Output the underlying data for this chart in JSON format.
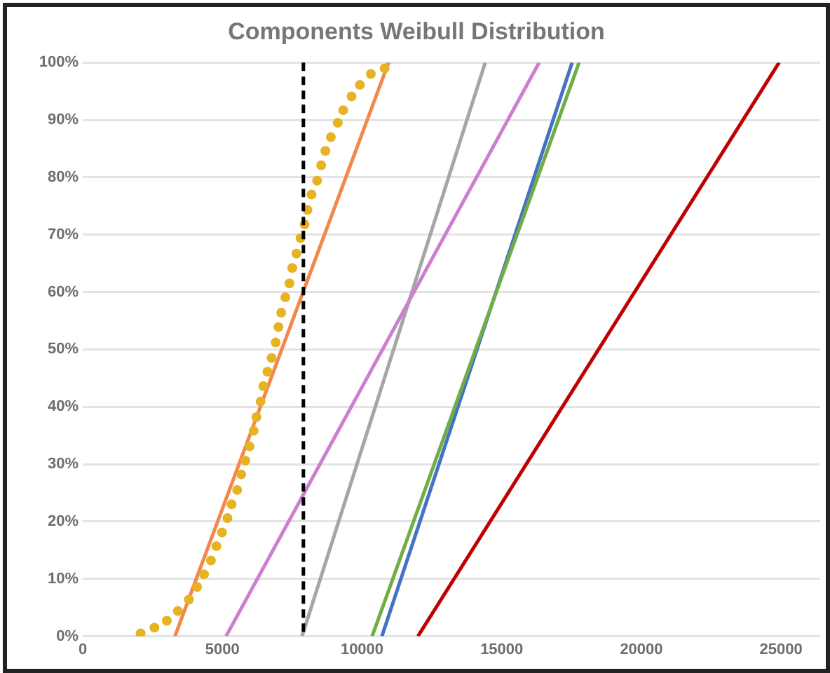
{
  "chart_data": {
    "type": "line",
    "title": "Components Weibull Distribution",
    "xlim": [
      0,
      26400
    ],
    "xticks": [
      0,
      5000,
      10000,
      15000,
      20000,
      25000
    ],
    "ylim": [
      0,
      100
    ],
    "yticks": [
      {
        "value": 0,
        "label": "0%"
      },
      {
        "value": 10,
        "label": "10%"
      },
      {
        "value": 20,
        "label": "20%"
      },
      {
        "value": 30,
        "label": "30%"
      },
      {
        "value": 40,
        "label": "40%"
      },
      {
        "value": 50,
        "label": "50%"
      },
      {
        "value": 60,
        "label": "60%"
      },
      {
        "value": 70,
        "label": "70%"
      },
      {
        "value": 80,
        "label": "80%"
      },
      {
        "value": 90,
        "label": "90%"
      },
      {
        "value": 100,
        "label": "100%"
      }
    ],
    "grid": "y",
    "legend": false,
    "ref_lines": [
      {
        "axis": "x",
        "value": 7900,
        "color": "#000000",
        "line_style": "dashed"
      }
    ],
    "series": [
      {
        "type": "scatter",
        "marker": "circle",
        "color": "#e6b422",
        "x": [
          2073,
          2566,
          3010,
          3405,
          3800,
          4096,
          4343,
          4590,
          4787,
          4984,
          5182,
          5330,
          5527,
          5675,
          5823,
          5971,
          6119,
          6218,
          6366,
          6465,
          6613,
          6761,
          6909,
          7008,
          7106,
          7254,
          7402,
          7501,
          7649,
          7797,
          7945,
          8044,
          8192,
          8390,
          8537,
          8686,
          8883,
          9130,
          9327,
          9623,
          9920,
          10314,
          10808
        ],
        "values": [
          0.5,
          1.5,
          2.7,
          4.4,
          6.4,
          8.6,
          10.8,
          13.2,
          15.7,
          18.1,
          20.6,
          23.0,
          25.5,
          28.2,
          30.6,
          33.1,
          35.8,
          38.2,
          40.9,
          43.6,
          46.1,
          48.5,
          51.2,
          53.9,
          56.4,
          59.1,
          61.5,
          64.2,
          66.7,
          69.4,
          71.8,
          74.3,
          77.0,
          79.4,
          82.1,
          84.6,
          87.0,
          89.5,
          91.7,
          94.1,
          96.1,
          98.0,
          99.0
        ]
      },
      {
        "color": "#f4874b",
        "x": [
          3300,
          10950
        ],
        "values": [
          0,
          100
        ]
      },
      {
        "color": "#cc7fd0",
        "x": [
          5130,
          16340
        ],
        "values": [
          0,
          100
        ]
      },
      {
        "color": "#a6a6a6",
        "x": [
          7850,
          14410
        ],
        "values": [
          0,
          100
        ]
      },
      {
        "color": "#70ad47",
        "x": [
          10360,
          17770
        ],
        "values": [
          0,
          100
        ]
      },
      {
        "color": "#4472c4",
        "x": [
          10710,
          17520
        ],
        "values": [
          0,
          100
        ]
      },
      {
        "color": "#c00000",
        "x": [
          12000,
          24930
        ],
        "values": [
          0,
          100
        ]
      }
    ]
  }
}
